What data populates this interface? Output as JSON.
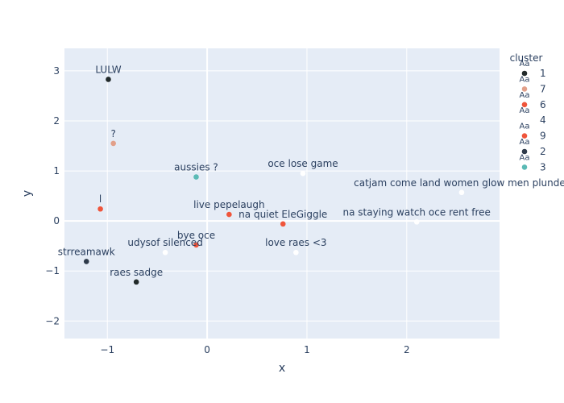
{
  "chart_data": {
    "type": "scatter",
    "xlabel": "x",
    "ylabel": "y",
    "xlim": [
      -1.43,
      2.93
    ],
    "ylim": [
      -2.35,
      3.45
    ],
    "x_ticks": [
      -1,
      0,
      1,
      2
    ],
    "y_ticks": [
      -2,
      -1,
      0,
      1,
      2,
      3
    ],
    "grid": true,
    "legend_position": "right",
    "legend_title": "cluster",
    "colors": {
      "plot_bg": "#E5ECF6",
      "grid": "#ffffff",
      "text": "#2a3f5f"
    },
    "series": [
      {
        "name": "1",
        "color": "#222A2A"
      },
      {
        "name": "7",
        "color": "#E2A08A"
      },
      {
        "name": "6",
        "color": "#EF553B"
      },
      {
        "name": "4",
        "color": "#FFFFFF"
      },
      {
        "name": "9",
        "color": "#EF553B"
      },
      {
        "name": "2",
        "color": "#2E3A4A"
      },
      {
        "name": "3",
        "color": "#5BBAB5"
      }
    ],
    "points": [
      {
        "x": -0.99,
        "y": 2.83,
        "label": "LULW",
        "cluster": "1"
      },
      {
        "x": -0.94,
        "y": 1.55,
        "label": "?",
        "cluster": "7"
      },
      {
        "x": -1.07,
        "y": 0.24,
        "label": "l",
        "cluster": "6"
      },
      {
        "x": -1.21,
        "y": -0.81,
        "label": "strreamawk",
        "cluster": "2"
      },
      {
        "x": -0.71,
        "y": -1.22,
        "label": "raes sadge",
        "cluster": "1"
      },
      {
        "x": -0.42,
        "y": -0.63,
        "label": "udysof silenced",
        "cluster": "4"
      },
      {
        "x": -0.11,
        "y": -0.48,
        "label": "bye oce",
        "cluster": "6"
      },
      {
        "x": -0.11,
        "y": 0.88,
        "label": "aussies ?",
        "cluster": "3"
      },
      {
        "x": 0.22,
        "y": 0.13,
        "label": "live pepelaugh",
        "cluster": "9"
      },
      {
        "x": 0.76,
        "y": -0.06,
        "label": "na quiet EleGiggle",
        "cluster": "6"
      },
      {
        "x": 0.96,
        "y": 0.95,
        "label": "oce lose game",
        "cluster": "4"
      },
      {
        "x": 0.89,
        "y": -0.63,
        "label": "love raes <3",
        "cluster": "4"
      },
      {
        "x": 2.55,
        "y": 0.57,
        "label": "catjam come land women glow men plunder",
        "cluster": "4"
      },
      {
        "x": 2.1,
        "y": -0.02,
        "label": "na staying watch oce rent free",
        "cluster": "4"
      }
    ]
  }
}
